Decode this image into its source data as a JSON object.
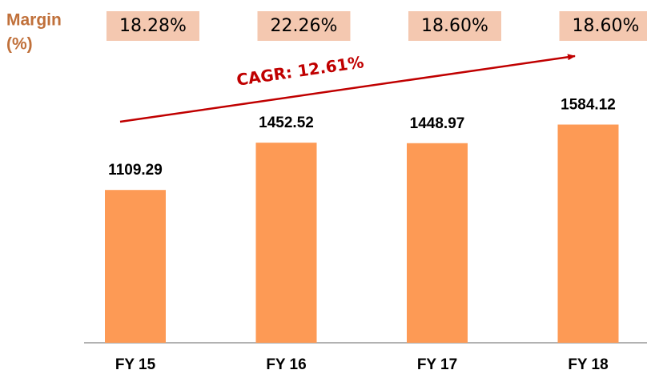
{
  "chart_data": {
    "type": "bar",
    "categories": [
      "FY 15",
      "FY 16",
      "FY 17",
      "FY 18"
    ],
    "values": [
      1109.29,
      1452.52,
      1448.97,
      1584.12
    ],
    "color": "#fd9a55",
    "ylim": [
      0,
      2000
    ],
    "margin_label": [
      "Margin",
      "(%)"
    ],
    "margins": {
      "values": [
        18.28,
        22.26,
        18.6,
        18.6
      ],
      "value_labels": [
        "18.28%",
        "22.26%",
        "18.60%",
        "18.60%"
      ],
      "color": "#f4c8b0"
    },
    "annotation": "CAGR: 12.61%"
  }
}
